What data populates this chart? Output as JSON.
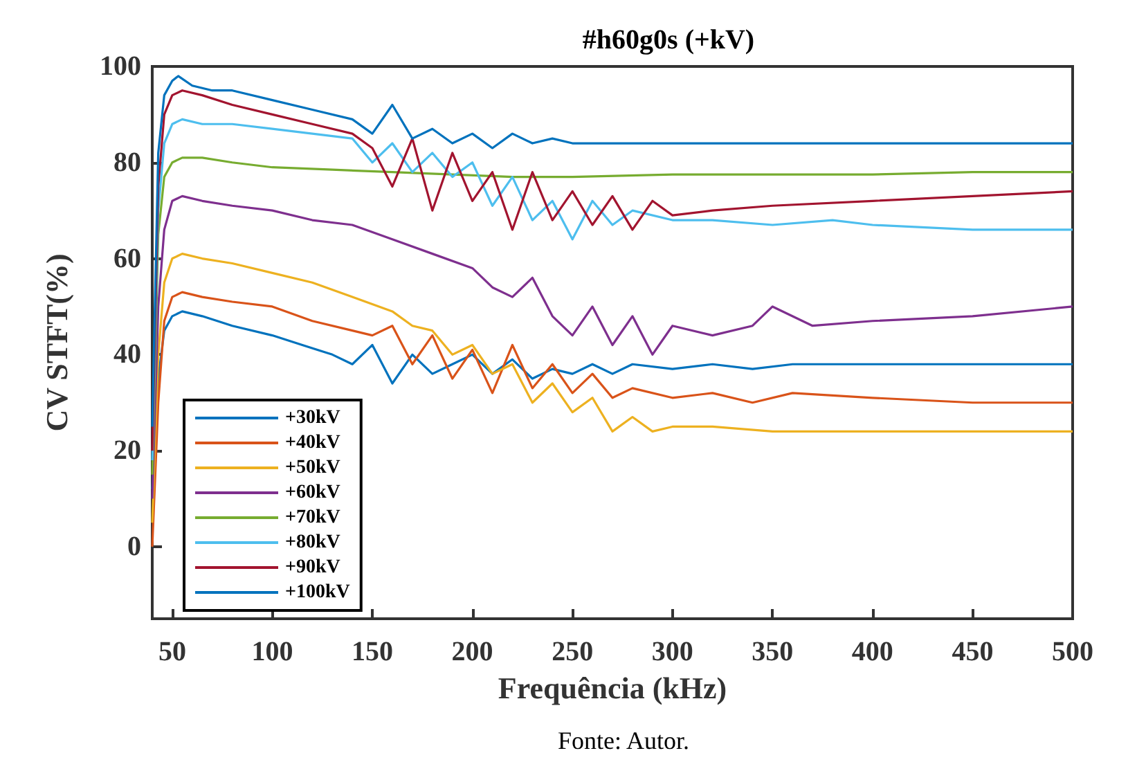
{
  "chart_data": {
    "type": "line",
    "title": "#h60g0s (+kV)",
    "xlabel": "Frequência (kHz)",
    "ylabel": "CV STFT(%)",
    "annotations": [
      "Fonte: Autor."
    ],
    "xlim": [
      40,
      500
    ],
    "xticks": [
      50,
      100,
      150,
      200,
      250,
      300,
      350,
      400,
      450,
      500
    ],
    "ylim": [
      -15,
      100
    ],
    "yticks": [
      0,
      20,
      40,
      60,
      80,
      100
    ],
    "grid": false,
    "legend": "bottom left",
    "marker": "none",
    "line_style": "solid",
    "series": [
      {
        "name": "+30kV",
        "color": "#0072bd",
        "x": [
          40,
          43,
          46,
          50,
          55,
          65,
          80,
          100,
          115,
          130,
          140,
          150,
          160,
          170,
          180,
          190,
          200,
          210,
          220,
          230,
          240,
          250,
          260,
          270,
          280,
          300,
          320,
          340,
          360,
          400,
          450,
          500
        ],
        "values": [
          12,
          35,
          45,
          48,
          49,
          48,
          46,
          44,
          42,
          40,
          38,
          42,
          34,
          40,
          36,
          38,
          40,
          36,
          39,
          35,
          37,
          36,
          38,
          36,
          38,
          37,
          38,
          37,
          38,
          38,
          38,
          38
        ]
      },
      {
        "name": "+40kV",
        "color": "#d95319",
        "x": [
          40,
          43,
          46,
          50,
          55,
          65,
          80,
          100,
          120,
          140,
          150,
          160,
          170,
          180,
          190,
          200,
          210,
          220,
          230,
          240,
          250,
          260,
          270,
          280,
          300,
          320,
          340,
          360,
          400,
          450,
          500
        ],
        "values": [
          0,
          30,
          47,
          52,
          53,
          52,
          51,
          50,
          47,
          45,
          44,
          46,
          38,
          44,
          35,
          41,
          32,
          42,
          33,
          38,
          32,
          36,
          31,
          33,
          31,
          32,
          30,
          32,
          31,
          30,
          30
        ]
      },
      {
        "name": "+50kV",
        "color": "#edb120",
        "x": [
          40,
          43,
          46,
          50,
          55,
          65,
          80,
          100,
          120,
          140,
          160,
          170,
          180,
          190,
          200,
          210,
          220,
          230,
          240,
          250,
          260,
          270,
          280,
          290,
          300,
          320,
          350,
          400,
          450,
          500
        ],
        "values": [
          5,
          40,
          55,
          60,
          61,
          60,
          59,
          57,
          55,
          52,
          49,
          46,
          45,
          40,
          42,
          36,
          38,
          30,
          34,
          28,
          31,
          24,
          27,
          24,
          25,
          25,
          24,
          24,
          24,
          24
        ]
      },
      {
        "name": "+60kV",
        "color": "#7e2f8e",
        "x": [
          40,
          43,
          46,
          50,
          55,
          65,
          80,
          100,
          120,
          140,
          160,
          180,
          200,
          210,
          220,
          230,
          240,
          250,
          260,
          270,
          280,
          290,
          300,
          320,
          340,
          350,
          370,
          400,
          450,
          500
        ],
        "values": [
          10,
          50,
          66,
          72,
          73,
          72,
          71,
          70,
          68,
          67,
          64,
          61,
          58,
          54,
          52,
          56,
          48,
          44,
          50,
          42,
          48,
          40,
          46,
          44,
          46,
          50,
          46,
          47,
          48,
          50
        ]
      },
      {
        "name": "+70kV",
        "color": "#77ac30",
        "x": [
          40,
          43,
          46,
          50,
          55,
          65,
          80,
          100,
          130,
          160,
          190,
          220,
          250,
          300,
          350,
          400,
          450,
          500
        ],
        "values": [
          15,
          65,
          77,
          80,
          81,
          81,
          80,
          79,
          78.5,
          78,
          77.5,
          77,
          77,
          77.5,
          77.5,
          77.5,
          78,
          78
        ]
      },
      {
        "name": "+80kV",
        "color": "#4dbeee",
        "x": [
          40,
          43,
          46,
          50,
          55,
          65,
          80,
          100,
          120,
          140,
          150,
          160,
          170,
          180,
          190,
          200,
          210,
          220,
          230,
          240,
          250,
          260,
          270,
          280,
          300,
          320,
          350,
          380,
          400,
          450,
          500
        ],
        "values": [
          18,
          70,
          84,
          88,
          89,
          88,
          88,
          87,
          86,
          85,
          80,
          84,
          78,
          82,
          77,
          80,
          71,
          77,
          68,
          72,
          64,
          72,
          67,
          70,
          68,
          68,
          67,
          68,
          67,
          66,
          66
        ]
      },
      {
        "name": "+90kV",
        "color": "#a2142f",
        "x": [
          40,
          43,
          46,
          50,
          55,
          65,
          80,
          100,
          120,
          140,
          150,
          160,
          170,
          180,
          190,
          200,
          210,
          220,
          230,
          240,
          250,
          260,
          270,
          280,
          290,
          300,
          320,
          350,
          400,
          450,
          500
        ],
        "values": [
          20,
          75,
          90,
          94,
          95,
          94,
          92,
          90,
          88,
          86,
          83,
          75,
          85,
          70,
          82,
          72,
          78,
          66,
          78,
          68,
          74,
          67,
          73,
          66,
          72,
          69,
          70,
          71,
          72,
          73,
          74
        ]
      },
      {
        "name": "+100kV",
        "color": "#0072bd",
        "x": [
          40,
          43,
          46,
          50,
          53,
          60,
          70,
          80,
          100,
          120,
          140,
          150,
          160,
          170,
          180,
          190,
          200,
          210,
          220,
          230,
          240,
          250,
          270,
          300,
          350,
          400,
          450,
          500
        ],
        "values": [
          25,
          82,
          94,
          97,
          98,
          96,
          95,
          95,
          93,
          91,
          89,
          86,
          92,
          85,
          87,
          84,
          86,
          83,
          86,
          84,
          85,
          84,
          84,
          84,
          84,
          84,
          84,
          84
        ]
      }
    ]
  }
}
